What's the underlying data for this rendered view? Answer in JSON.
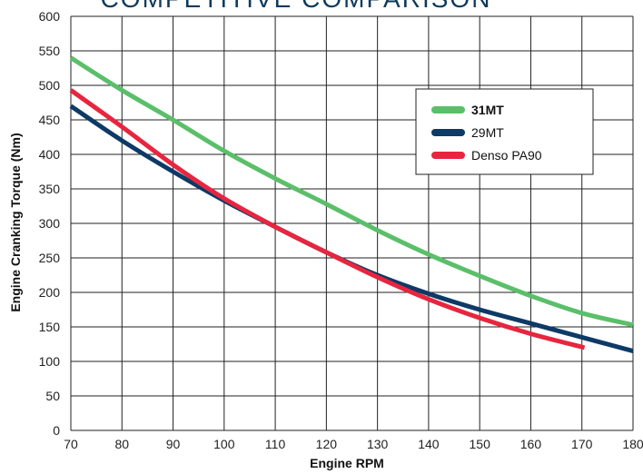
{
  "chart_data": {
    "type": "line",
    "title": "COMPETITIVE COMPARISON",
    "xlabel": "Engine RPM",
    "ylabel": "Engine Cranking Torque (Nm)",
    "xlim": [
      70,
      180
    ],
    "ylim": [
      0,
      600
    ],
    "xticks": [
      70,
      80,
      90,
      100,
      110,
      120,
      130,
      140,
      150,
      160,
      170,
      180
    ],
    "yticks": [
      0,
      50,
      100,
      150,
      200,
      250,
      300,
      350,
      400,
      450,
      500,
      550,
      600
    ],
    "grid": true,
    "legend_position": "top-right",
    "series": [
      {
        "name": "31MT",
        "color": "#5bbf6a",
        "bold_label": true,
        "x": [
          70,
          80,
          90,
          100,
          110,
          120,
          130,
          140,
          150,
          160,
          170,
          180
        ],
        "y": [
          540,
          493,
          450,
          405,
          365,
          328,
          290,
          255,
          224,
          195,
          170,
          153
        ]
      },
      {
        "name": "29MT",
        "color": "#0d3a66",
        "bold_label": false,
        "x": [
          70,
          80,
          90,
          100,
          110,
          120,
          130,
          140,
          150,
          160,
          170,
          180
        ],
        "y": [
          470,
          420,
          375,
          333,
          295,
          258,
          225,
          198,
          175,
          155,
          135,
          115
        ]
      },
      {
        "name": "Denso PA90",
        "color": "#e8253f",
        "bold_label": false,
        "x": [
          70,
          80,
          90,
          100,
          110,
          120,
          130,
          140,
          150,
          160,
          170.5
        ],
        "y": [
          493,
          440,
          385,
          336,
          295,
          258,
          222,
          190,
          163,
          140,
          120
        ]
      }
    ]
  }
}
